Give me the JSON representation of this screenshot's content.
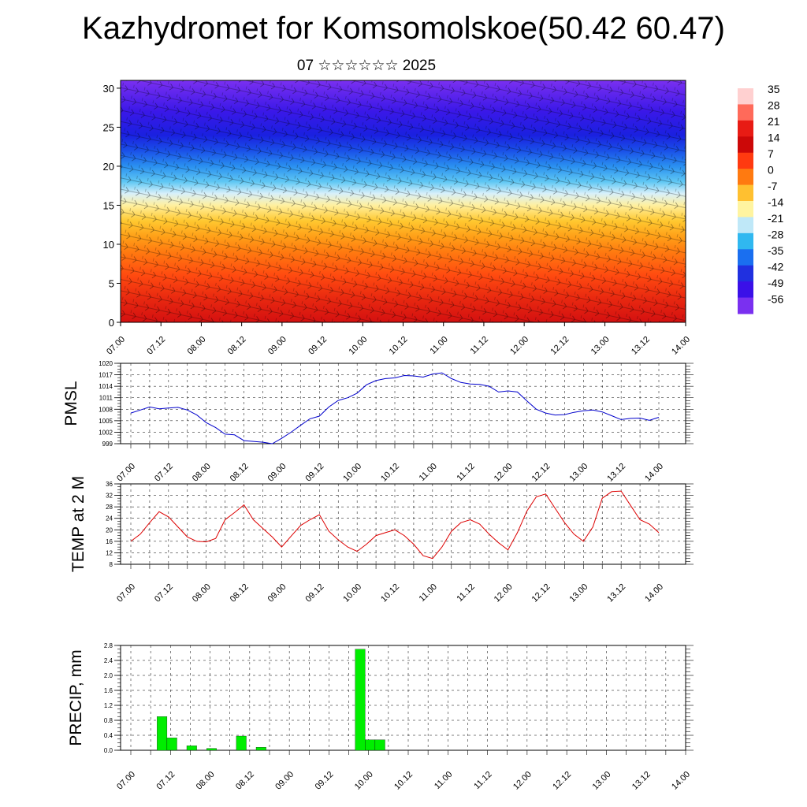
{
  "title": "Kazhydromet for Komsomolskoe(50.42 60.47)",
  "subtitle": "07 ☆☆☆☆☆☆ 2025",
  "time_labels": [
    "07.00",
    "07.12",
    "08.00",
    "08.12",
    "09.00",
    "09.12",
    "10.00",
    "10.12",
    "11.00",
    "11.12",
    "12.00",
    "12.12",
    "13.00",
    "13.12",
    "14.00"
  ],
  "chart_data": [
    {
      "type": "heatmap",
      "name": "vertical-cross-section",
      "xlabel": "",
      "ylabel": "",
      "yticks": [
        0,
        5,
        10,
        15,
        20,
        25,
        30
      ],
      "ylim": [
        0,
        31
      ],
      "colorbar": {
        "labels": [
          "35",
          "28",
          "21",
          "14",
          "7",
          "0",
          "-7",
          "-14",
          "-21",
          "-28",
          "-35",
          "-42",
          "-49",
          "-56"
        ],
        "colors": [
          "#ffd0d0",
          "#ff6a5a",
          "#e81b14",
          "#cc0808",
          "#ff3a10",
          "#ff7a10",
          "#ffc030",
          "#fff4a0",
          "#bfe8f8",
          "#30b8f0",
          "#1a6ff0",
          "#2030e0",
          "#3a10e8",
          "#7a30f0"
        ]
      },
      "levels": [
        {
          "z": 0,
          "color": "#d41010"
        },
        {
          "z": 3,
          "color": "#e82810"
        },
        {
          "z": 6,
          "color": "#ff4a10"
        },
        {
          "z": 9,
          "color": "#ff7a10"
        },
        {
          "z": 11,
          "color": "#ffa018"
        },
        {
          "z": 13,
          "color": "#ffc830"
        },
        {
          "z": 15,
          "color": "#fff0a0"
        },
        {
          "z": 16.5,
          "color": "#d8f0fa"
        },
        {
          "z": 18,
          "color": "#60c8f4"
        },
        {
          "z": 20,
          "color": "#2a90f0"
        },
        {
          "z": 22,
          "color": "#1a50e8"
        },
        {
          "z": 24,
          "color": "#1a20e0"
        },
        {
          "z": 27,
          "color": "#3a18e8"
        },
        {
          "z": 31,
          "color": "#7a30f0"
        }
      ]
    },
    {
      "type": "line",
      "ylabel": "PMSL",
      "ylim": [
        999,
        1020
      ],
      "yticks": [
        999,
        1002,
        1005,
        1008,
        1011,
        1014,
        1017,
        1020
      ],
      "color": "#0000cc",
      "x": [
        "07.00",
        "07.03",
        "07.06",
        "07.09",
        "07.12",
        "07.15",
        "07.18",
        "07.21",
        "08.00",
        "08.03",
        "08.06",
        "08.09",
        "08.12",
        "08.15",
        "08.18",
        "08.21",
        "09.00",
        "09.03",
        "09.06",
        "09.09",
        "09.12",
        "09.15",
        "09.18",
        "09.21",
        "10.00",
        "10.03",
        "10.06",
        "10.09",
        "10.12",
        "10.15",
        "10.18",
        "10.21",
        "11.00",
        "11.03",
        "11.06",
        "11.09",
        "11.12",
        "11.15",
        "11.18",
        "11.21",
        "12.00",
        "12.03",
        "12.06",
        "12.09",
        "12.12",
        "12.15",
        "12.18",
        "12.21",
        "13.00",
        "13.03",
        "13.06",
        "13.09",
        "13.12",
        "13.15",
        "13.18",
        "13.21",
        "14.00"
      ],
      "values": [
        1007.0,
        1007.8,
        1008.6,
        1008.1,
        1008.3,
        1008.5,
        1007.8,
        1006.5,
        1004.5,
        1003.2,
        1001.5,
        1001.3,
        999.8,
        999.6,
        999.4,
        999.0,
        1000.4,
        1002.0,
        1003.8,
        1005.5,
        1006.2,
        1008.6,
        1010.3,
        1011.0,
        1012.2,
        1014.4,
        1015.5,
        1016.0,
        1016.2,
        1016.8,
        1016.7,
        1016.4,
        1017.2,
        1017.5,
        1016.0,
        1015.0,
        1014.6,
        1014.5,
        1014.0,
        1012.5,
        1012.8,
        1012.5,
        1010.2,
        1008.0,
        1007.0,
        1006.5,
        1006.6,
        1007.2,
        1007.6,
        1007.8,
        1007.3,
        1006.3,
        1005.3,
        1005.6,
        1005.7,
        1005.1,
        1005.9
      ]
    },
    {
      "type": "line",
      "ylabel": "TEMP at 2 M",
      "ylim": [
        8,
        36
      ],
      "yticks": [
        8,
        12,
        16,
        20,
        24,
        28,
        32,
        36
      ],
      "color": "#dd0000",
      "x": [
        "07.00",
        "07.03",
        "07.06",
        "07.09",
        "07.12",
        "07.15",
        "07.18",
        "07.21",
        "08.00",
        "08.03",
        "08.06",
        "08.09",
        "08.12",
        "08.15",
        "08.18",
        "08.21",
        "09.00",
        "09.03",
        "09.06",
        "09.09",
        "09.12",
        "09.15",
        "09.18",
        "09.21",
        "10.00",
        "10.03",
        "10.06",
        "10.09",
        "10.12",
        "10.15",
        "10.18",
        "10.21",
        "11.00",
        "11.03",
        "11.06",
        "11.09",
        "11.12",
        "11.15",
        "11.18",
        "11.21",
        "12.00",
        "12.03",
        "12.06",
        "12.09",
        "12.12",
        "12.15",
        "12.18",
        "12.21",
        "13.00",
        "13.03",
        "13.06",
        "13.09",
        "13.12",
        "13.15",
        "13.18",
        "13.21",
        "14.00"
      ],
      "values": [
        16.0,
        18.5,
        22.5,
        26.3,
        24.5,
        21.0,
        17.5,
        16.0,
        15.8,
        17.0,
        23.5,
        26.0,
        28.7,
        23.5,
        20.5,
        17.5,
        14.0,
        17.8,
        21.5,
        23.5,
        25.3,
        19.5,
        16.5,
        14.0,
        12.5,
        15.0,
        18.0,
        19.0,
        20.0,
        18.0,
        15.0,
        11.0,
        10.0,
        14.0,
        19.5,
        22.5,
        23.5,
        22.0,
        18.5,
        15.5,
        13.0,
        19.0,
        26.5,
        31.5,
        32.5,
        27.5,
        22.5,
        18.5,
        16.0,
        21.0,
        31.0,
        33.3,
        33.5,
        28.5,
        23.5,
        22.0,
        19.0
      ]
    },
    {
      "type": "bar",
      "ylabel": "PRECIP, mm",
      "ylim": [
        0,
        2.8
      ],
      "yticks": [
        "0.0",
        "0.4",
        "0.8",
        "1.2",
        "1.6",
        "2.0",
        "2.4",
        "2.8"
      ],
      "color": "#00ee00",
      "x": [
        "07.09",
        "07.12",
        "07.15",
        "07.18",
        "08.00",
        "08.03",
        "08.09",
        "08.15",
        "09.21",
        "10.00",
        "10.03"
      ],
      "values": [
        0.9,
        0.33,
        0.0,
        0.12,
        0.05,
        0.0,
        0.38,
        0.08,
        2.7,
        0.28,
        0.28
      ]
    }
  ]
}
